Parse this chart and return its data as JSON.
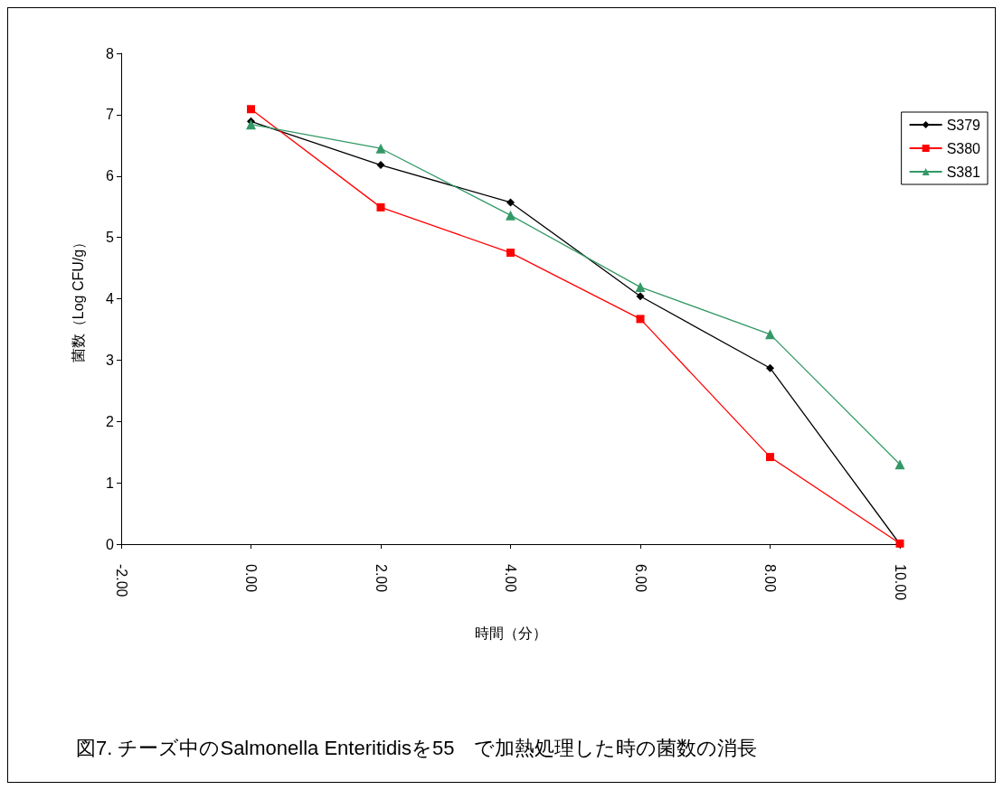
{
  "chart_data": {
    "type": "line",
    "title": "図7. チーズ中のSalmonella Enteritidisを55　で加熱処理した時の菌数の消長",
    "xlabel": "時間（分）",
    "ylabel": "菌数（Log CFU/g）",
    "x": [
      0,
      2,
      4,
      6,
      8,
      10
    ],
    "series": [
      {
        "name": "S379",
        "color": "#000000",
        "marker": "diamond",
        "values": [
          6.89,
          6.18,
          5.57,
          4.04,
          2.87,
          0
        ]
      },
      {
        "name": "S380",
        "color": "#ff0000",
        "marker": "square",
        "values": [
          7.09,
          5.49,
          4.75,
          3.67,
          1.42,
          0.01
        ]
      },
      {
        "name": "S381",
        "color": "#339966",
        "marker": "triangle",
        "values": [
          6.84,
          6.45,
          5.36,
          4.19,
          3.42,
          1.3
        ]
      }
    ],
    "xlim": [
      -2,
      10
    ],
    "xticks": [
      {
        "value": -2,
        "label": "-2.00"
      },
      {
        "value": 0,
        "label": "0.00"
      },
      {
        "value": 2,
        "label": "2.00"
      },
      {
        "value": 4,
        "label": "4.00"
      },
      {
        "value": 6,
        "label": "6.00"
      },
      {
        "value": 8,
        "label": "8.00"
      },
      {
        "value": 10,
        "label": "10.00"
      }
    ],
    "ylim": [
      0,
      8
    ],
    "yticks": [
      0,
      1,
      2,
      3,
      4,
      5,
      6,
      7,
      8
    ],
    "grid": false,
    "legend": "top right"
  }
}
